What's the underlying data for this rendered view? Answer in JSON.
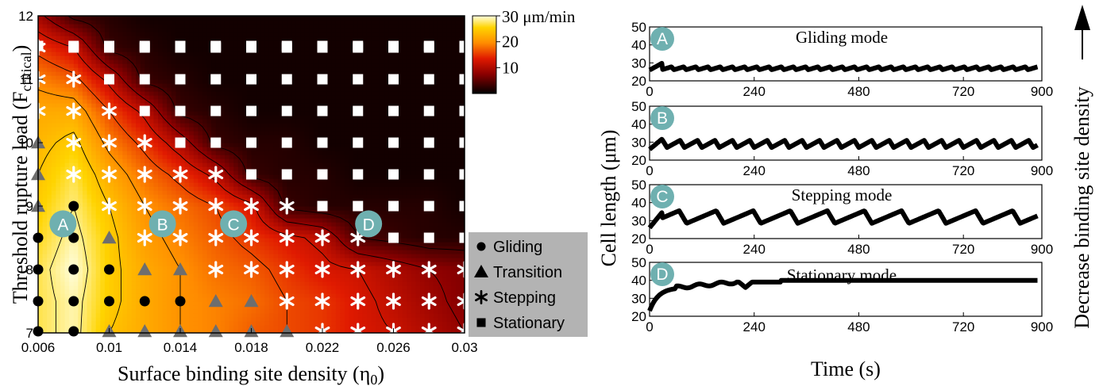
{
  "chart_data": [
    {
      "type": "heatmap",
      "xlabel": "Surface binding site density (η",
      "xlabel_sub": "0",
      "xlabel_end": ")",
      "ylabel": "Threshold rupture load (F",
      "ylabel_sub": "critical",
      "ylabel_end": ")",
      "xlim": [
        0.006,
        0.03
      ],
      "ylim": [
        7,
        12
      ],
      "xticks": [
        "0.006",
        "0.01",
        "0.014",
        "0.018",
        "0.022",
        "0.026",
        "0.03"
      ],
      "xtick_values": [
        0.006,
        0.01,
        0.014,
        0.018,
        0.022,
        0.026,
        0.03
      ],
      "yticks": [
        "7",
        "8",
        "9",
        "10",
        "11",
        "12"
      ],
      "ytick_values": [
        7,
        8,
        9,
        10,
        11,
        12
      ],
      "colorbar": {
        "labels": [
          "30 μm/min",
          "20",
          "10"
        ],
        "values": [
          30,
          20,
          10
        ],
        "range": [
          0,
          30
        ]
      },
      "legend": {
        "placement": "bottom-right",
        "entries": [
          {
            "marker": "circle",
            "label": "Gliding"
          },
          {
            "marker": "triangle",
            "label": "Transition"
          },
          {
            "marker": "asterisk",
            "label": "Stepping"
          },
          {
            "marker": "square",
            "label": "Stationary"
          }
        ]
      },
      "annotations": [
        {
          "text": "A",
          "x": 0.0074,
          "y": 8.72
        },
        {
          "text": "B",
          "x": 0.013,
          "y": 8.72
        },
        {
          "text": "C",
          "x": 0.017,
          "y": 8.72
        },
        {
          "text": "D",
          "x": 0.0246,
          "y": 8.72
        }
      ],
      "contour_levels": [
        4,
        8,
        12,
        16,
        20,
        24,
        28
      ],
      "speed_grid": {
        "x": [
          0.006,
          0.008,
          0.01,
          0.012,
          0.014,
          0.016,
          0.018,
          0.02,
          0.022,
          0.024,
          0.026,
          0.028,
          0.03
        ],
        "y": [
          7,
          7.5,
          8,
          8.5,
          9,
          9.5,
          10,
          10.5,
          11,
          11.5,
          12
        ],
        "values": [
          [
            27,
            29,
            24,
            22,
            20,
            19,
            17,
            16,
            15,
            13,
            12,
            10,
            8
          ],
          [
            27,
            29,
            25,
            22,
            20,
            19,
            18,
            16,
            15,
            13,
            11,
            9,
            7
          ],
          [
            27,
            30,
            25,
            22,
            20,
            18,
            17,
            15,
            13,
            12,
            10,
            8,
            7
          ],
          [
            26,
            29,
            25,
            21,
            19,
            17,
            15,
            13,
            11,
            4,
            3,
            2,
            2
          ],
          [
            25,
            28,
            24,
            20,
            18,
            16,
            13,
            3,
            2,
            2,
            2,
            2,
            1
          ],
          [
            24,
            27,
            22,
            18,
            15,
            11,
            3,
            2,
            2,
            1,
            1,
            1,
            1
          ],
          [
            23,
            25,
            19,
            15,
            10,
            3,
            2,
            2,
            1,
            1,
            1,
            1,
            1
          ],
          [
            22,
            22,
            16,
            11,
            3,
            2,
            1,
            1,
            1,
            1,
            1,
            1,
            1
          ],
          [
            19,
            17,
            11,
            3,
            2,
            1,
            1,
            1,
            1,
            1,
            1,
            1,
            1
          ],
          [
            15,
            12,
            3,
            2,
            1,
            1,
            1,
            1,
            1,
            1,
            1,
            1,
            1
          ],
          [
            9,
            3,
            2,
            1,
            1,
            1,
            1,
            1,
            1,
            1,
            1,
            1,
            1
          ]
        ]
      },
      "markers": {
        "x": [
          0.006,
          0.008,
          0.01,
          0.012,
          0.014,
          0.016,
          0.018,
          0.02,
          0.022,
          0.024,
          0.026,
          0.028,
          0.03
        ],
        "y": [
          7,
          7.5,
          8,
          8.5,
          9,
          9.5,
          10,
          10.5,
          11,
          11.5,
          12
        ],
        "codes": [
          "GGTTTTTTSSSSS",
          "GGGGGTTSSSSSS",
          "GGGTTSSSSSSSS",
          "GGTSSSSSSSQQQ",
          "TGSSSSSSQQQQQ",
          "TSSSSSQQQQQQQ",
          "TSSSQQQQQQQQQ",
          "SSSQQQQQQQQQQ",
          "SSQQQQQQQQQQQ",
          "SQQQQQQQQQQQQ",
          "QQQQQQQQQQQQQ"
        ]
      }
    },
    {
      "type": "line",
      "ylabel": "Cell length (μm)",
      "xlabel": "Time (s)",
      "side_label": "Decrease binding site density",
      "xlim": [
        0,
        900
      ],
      "ylim": [
        20,
        50
      ],
      "xticks": [
        "0",
        "240",
        "480",
        "720",
        "900"
      ],
      "xtick_values": [
        0,
        240,
        480,
        720,
        900
      ],
      "yticks": [
        "20",
        "30",
        "40",
        "50"
      ],
      "ytick_values": [
        20,
        30,
        40,
        50
      ],
      "panels": [
        {
          "badge": "A",
          "title": "Gliding mode",
          "base": 27,
          "amp": 1.6,
          "period": 28,
          "rise": 0.8,
          "dip": 0
        },
        {
          "badge": "B",
          "title": "",
          "base": 29,
          "amp": 4,
          "period": 40,
          "rise": 0.75,
          "dip": 0
        },
        {
          "badge": "C",
          "title": "Stepping mode",
          "base": 32,
          "amp": 7,
          "period": 85,
          "rise": 0.8,
          "dip": 0
        },
        {
          "badge": "D",
          "title": "Stationary mode",
          "base": 40,
          "amp": 0,
          "period": 1,
          "rise": 1,
          "dip": 220
        }
      ]
    }
  ]
}
